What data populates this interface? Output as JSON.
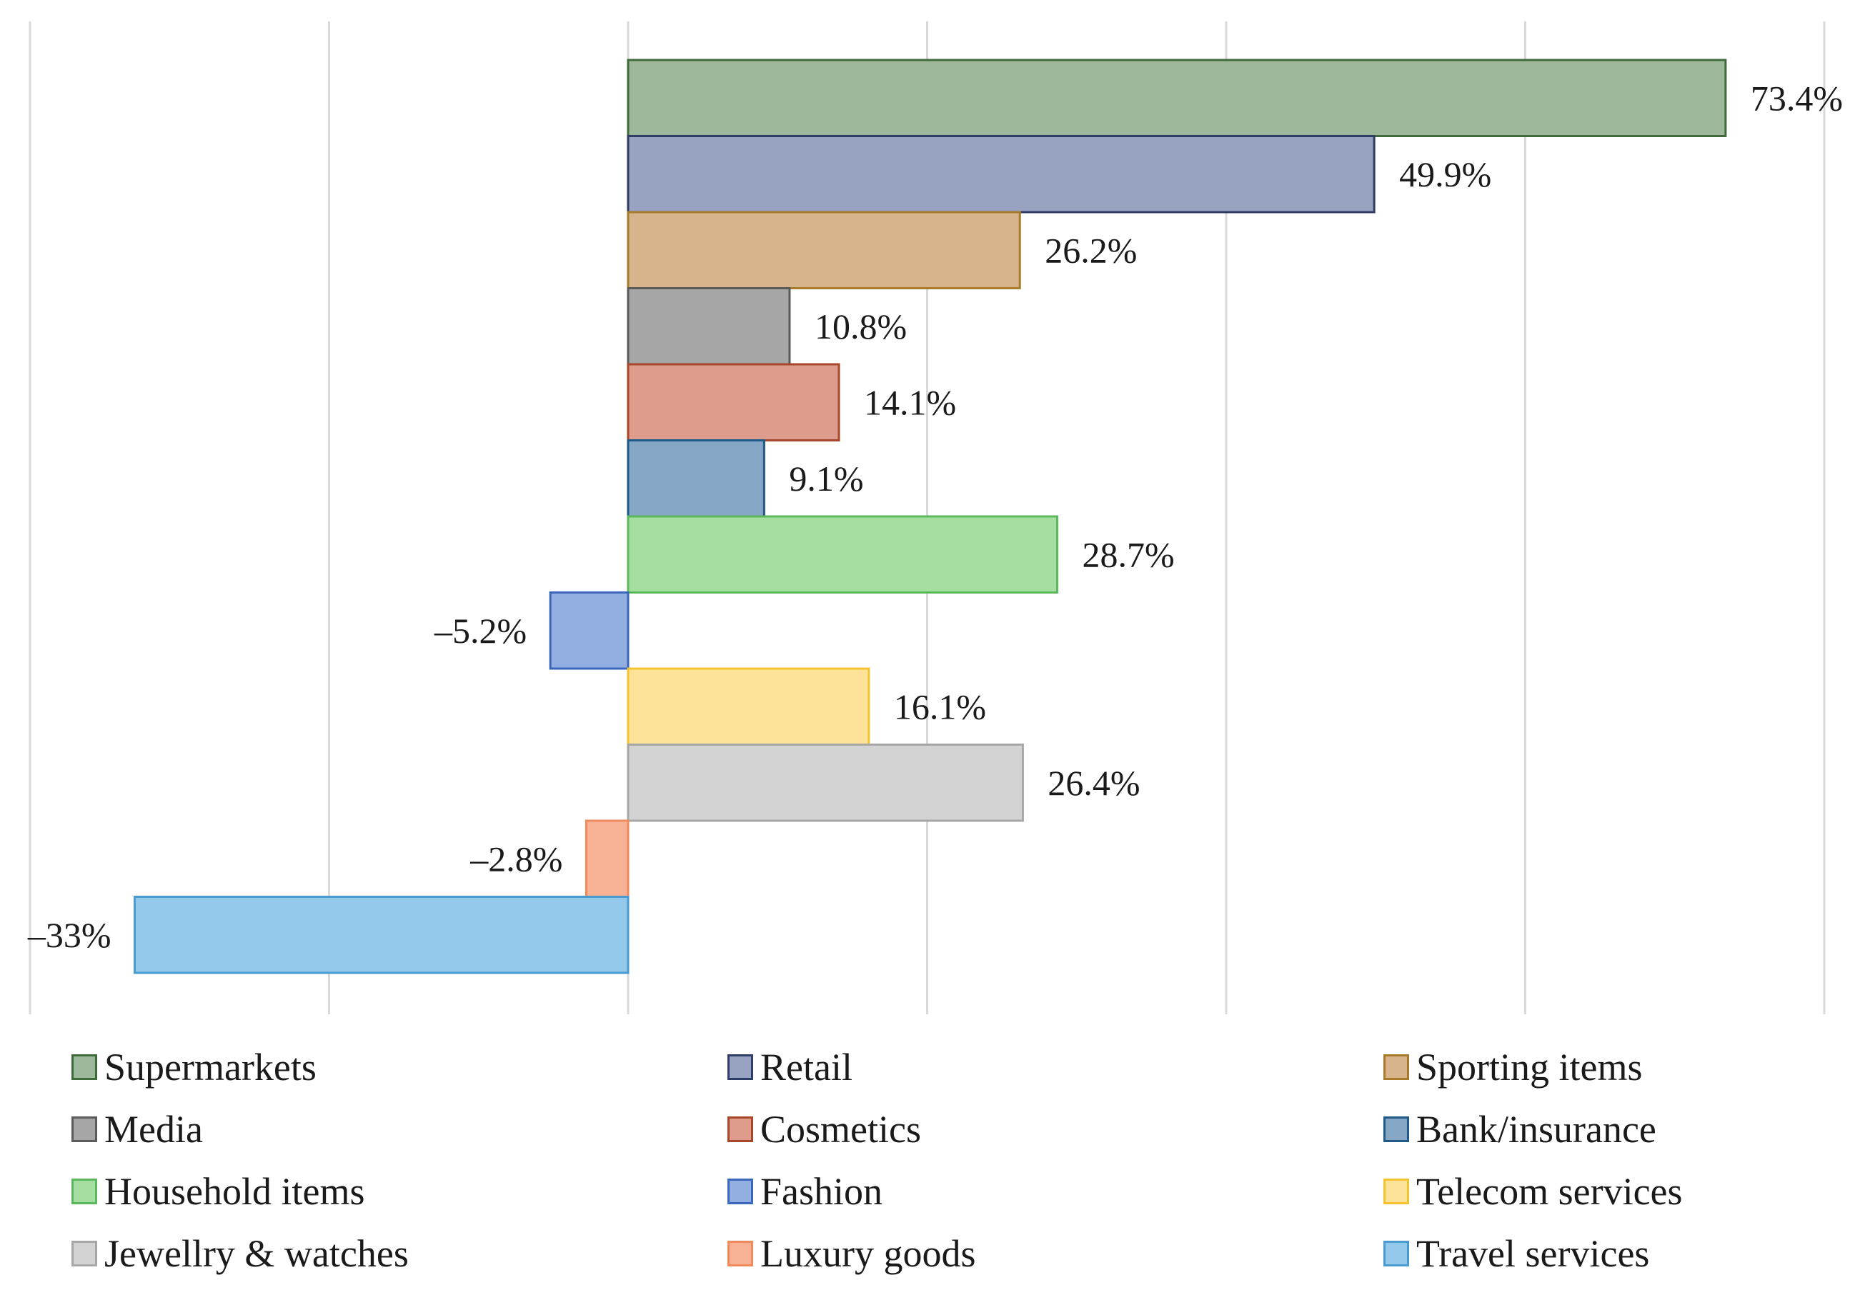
{
  "chart_data": {
    "type": "bar",
    "orientation": "horizontal",
    "title": "",
    "xlabel": "",
    "ylabel": "",
    "xlim": [
      -40,
      80
    ],
    "x_gridlines": [
      -40,
      -20,
      0,
      20,
      40,
      60,
      80
    ],
    "grid": true,
    "legend_position": "bottom",
    "series": [
      {
        "name": "Supermarkets",
        "value": 73.4,
        "label": "73.4%",
        "fill": "#9db89a",
        "stroke": "#3f6b3a"
      },
      {
        "name": "Retail",
        "value": 49.9,
        "label": "49.9%",
        "fill": "#98a3c1",
        "stroke": "#2e3c66"
      },
      {
        "name": "Sporting items",
        "value": 26.2,
        "label": "26.2%",
        "fill": "#d7b48c",
        "stroke": "#a77b2a"
      },
      {
        "name": "Media",
        "value": 10.8,
        "label": "10.8%",
        "fill": "#a6a6a6",
        "stroke": "#5a5a5a"
      },
      {
        "name": "Cosmetics",
        "value": 14.1,
        "label": "14.1%",
        "fill": "#dd9c8c",
        "stroke": "#a8462b"
      },
      {
        "name": "Bank/insurance",
        "value": 9.1,
        "label": "9.1%",
        "fill": "#86a6c6",
        "stroke": "#1f5a88"
      },
      {
        "name": "Household items",
        "value": 28.7,
        "label": "28.7%",
        "fill": "#a6dea1",
        "stroke": "#5cb85c"
      },
      {
        "name": "Fashion",
        "value": -5.2,
        "label": "–5.2%",
        "fill": "#93aee0",
        "stroke": "#3a66bd"
      },
      {
        "name": "Telecom services",
        "value": 16.1,
        "label": "16.1%",
        "fill": "#fde39a",
        "stroke": "#f4c430"
      },
      {
        "name": "Jewellry & watches",
        "value": 26.4,
        "label": "26.4%",
        "fill": "#d3d3d3",
        "stroke": "#a7a7a7"
      },
      {
        "name": "Luxury goods",
        "value": -2.8,
        "label": "–2.8%",
        "fill": "#f7b296",
        "stroke": "#f08a5d"
      },
      {
        "name": "Travel services",
        "value": -33,
        "label": "–33%",
        "fill": "#95c9ec",
        "stroke": "#4a9cd0"
      }
    ]
  }
}
